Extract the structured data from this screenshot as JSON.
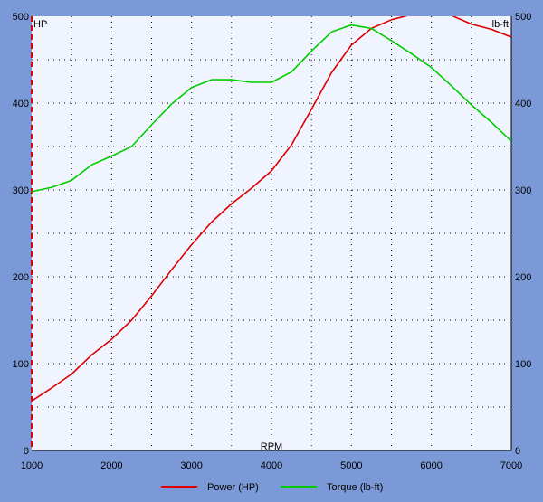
{
  "chart_data": {
    "type": "line",
    "xlabel": "RPM",
    "ylabel_left": "HP",
    "ylabel_right": "lb-ft",
    "xlim": [
      1000,
      7000
    ],
    "ylim_left": [
      0,
      500
    ],
    "ylim_right": [
      0,
      500
    ],
    "x_ticks": [
      1000,
      2000,
      3000,
      4000,
      5000,
      6000,
      7000
    ],
    "y_ticks_left": [
      0,
      100,
      200,
      300,
      400,
      500
    ],
    "y_ticks_right": [
      0,
      100,
      200,
      300,
      400,
      500
    ],
    "grid": true,
    "legend_position": "bottom",
    "series": [
      {
        "name": "Power (HP)",
        "axis": "left",
        "color": "#dd0000",
        "points": [
          [
            1000,
            57
          ],
          [
            1250,
            72
          ],
          [
            1500,
            88
          ],
          [
            1750,
            110
          ],
          [
            2000,
            128
          ],
          [
            2250,
            150
          ],
          [
            2500,
            178
          ],
          [
            2750,
            208
          ],
          [
            3000,
            237
          ],
          [
            3250,
            263
          ],
          [
            3500,
            284
          ],
          [
            3750,
            302
          ],
          [
            4000,
            322
          ],
          [
            4250,
            352
          ],
          [
            4500,
            393
          ],
          [
            4750,
            435
          ],
          [
            5000,
            467
          ],
          [
            5250,
            486
          ],
          [
            5500,
            496
          ],
          [
            5750,
            502
          ],
          [
            6000,
            503
          ],
          [
            6250,
            501
          ],
          [
            6500,
            491
          ],
          [
            6750,
            485
          ],
          [
            7000,
            476
          ]
        ]
      },
      {
        "name": "Torque (lb-ft)",
        "axis": "right",
        "color": "#00cc00",
        "points": [
          [
            1000,
            298
          ],
          [
            1250,
            303
          ],
          [
            1500,
            311
          ],
          [
            1750,
            329
          ],
          [
            2000,
            339
          ],
          [
            2250,
            350
          ],
          [
            2500,
            375
          ],
          [
            2750,
            399
          ],
          [
            3000,
            418
          ],
          [
            3250,
            427
          ],
          [
            3500,
            427
          ],
          [
            3750,
            424
          ],
          [
            4000,
            424
          ],
          [
            4250,
            436
          ],
          [
            4500,
            460
          ],
          [
            4750,
            482
          ],
          [
            5000,
            490
          ],
          [
            5250,
            486
          ],
          [
            5500,
            472
          ],
          [
            5750,
            457
          ],
          [
            6000,
            441
          ],
          [
            6250,
            420
          ],
          [
            6500,
            398
          ],
          [
            6750,
            378
          ],
          [
            7000,
            356
          ]
        ]
      }
    ]
  },
  "colors": {
    "frame": "#7b99d6",
    "plot_background": "#f0f4ff",
    "grid": "#000000",
    "left_axis": "#dd0000"
  }
}
